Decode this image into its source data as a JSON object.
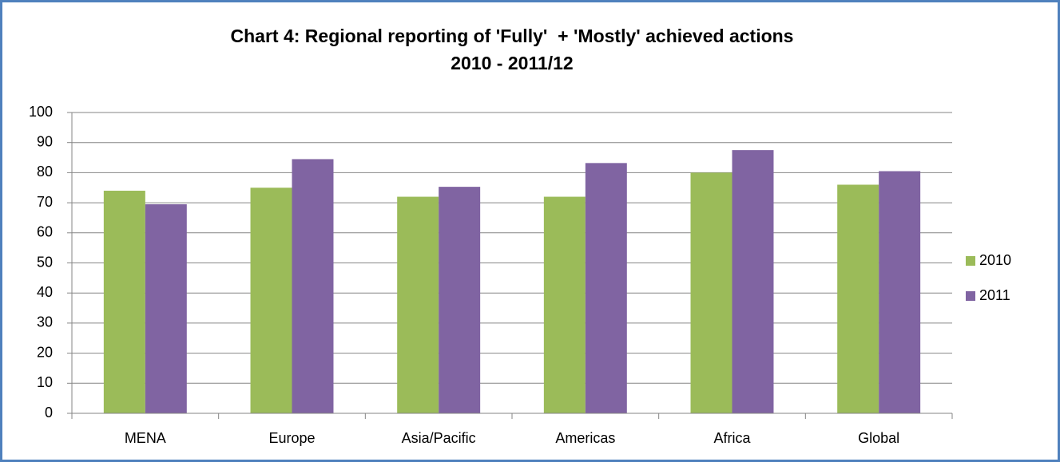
{
  "chart_data": {
    "type": "bar",
    "title": [
      "Chart 4: Regional reporting of 'Fully'  + 'Mostly' achieved actions",
      "2010 - 2011/12"
    ],
    "categories": [
      "MENA",
      "Europe",
      "Asia/Pacific",
      "Americas",
      "Africa",
      "Global"
    ],
    "series": [
      {
        "name": "2010",
        "color": "#9bbb59",
        "values": [
          74,
          75,
          72,
          72,
          80,
          76
        ]
      },
      {
        "name": "2011",
        "color": "#8064a2",
        "values": [
          69.5,
          84.5,
          75.3,
          83.2,
          87.5,
          80.5
        ]
      }
    ],
    "ylim": [
      0,
      100
    ],
    "yticks": [
      0,
      10,
      20,
      30,
      40,
      50,
      60,
      70,
      80,
      90,
      100
    ],
    "grid": true,
    "legend": "right"
  }
}
